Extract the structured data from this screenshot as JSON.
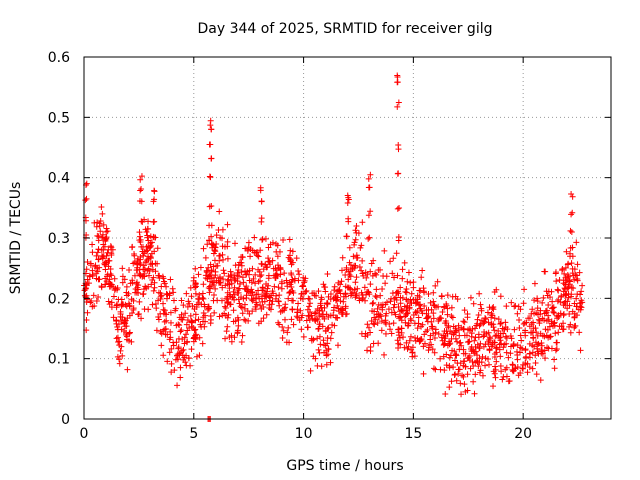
{
  "chart_data": {
    "type": "scatter",
    "title": "Day 344 of 2025, SRMTID for receiver gilg",
    "xlabel": "GPS time / hours",
    "ylabel": "SRMTID / TECUs",
    "xlim": [
      0,
      24
    ],
    "ylim": [
      0,
      0.6
    ],
    "x_ticks": [
      0,
      5,
      10,
      15,
      20
    ],
    "x_tick_labels": [
      "0",
      "5",
      "10",
      "15",
      "20"
    ],
    "y_ticks": [
      0,
      0.1,
      0.2,
      0.3,
      0.4,
      0.5,
      0.6
    ],
    "y_tick_labels": [
      "0",
      "0.1",
      "0.2",
      "0.3",
      "0.4",
      "0.5",
      "0.6"
    ],
    "grid": true,
    "marker": "plus",
    "color": "#ff0000",
    "coverage_x_range": [
      0,
      22.7
    ],
    "trend": [
      [
        0.0,
        0.22
      ],
      [
        0.5,
        0.24
      ],
      [
        0.9,
        0.29
      ],
      [
        1.2,
        0.25
      ],
      [
        1.5,
        0.16
      ],
      [
        2.0,
        0.18
      ],
      [
        2.5,
        0.24
      ],
      [
        3.0,
        0.26
      ],
      [
        3.5,
        0.18
      ],
      [
        4.0,
        0.15
      ],
      [
        4.5,
        0.13
      ],
      [
        5.0,
        0.18
      ],
      [
        5.5,
        0.2
      ],
      [
        6.0,
        0.27
      ],
      [
        6.5,
        0.22
      ],
      [
        7.0,
        0.2
      ],
      [
        7.5,
        0.23
      ],
      [
        8.0,
        0.21
      ],
      [
        8.5,
        0.24
      ],
      [
        9.0,
        0.22
      ],
      [
        9.5,
        0.21
      ],
      [
        10.0,
        0.2
      ],
      [
        10.5,
        0.15
      ],
      [
        11.0,
        0.16
      ],
      [
        11.5,
        0.19
      ],
      [
        12.0,
        0.23
      ],
      [
        12.5,
        0.25
      ],
      [
        13.0,
        0.18
      ],
      [
        13.5,
        0.2
      ],
      [
        14.0,
        0.19
      ],
      [
        14.5,
        0.18
      ],
      [
        15.0,
        0.15
      ],
      [
        15.5,
        0.18
      ],
      [
        16.0,
        0.16
      ],
      [
        16.5,
        0.14
      ],
      [
        17.0,
        0.12
      ],
      [
        17.5,
        0.11
      ],
      [
        18.0,
        0.13
      ],
      [
        18.5,
        0.14
      ],
      [
        19.0,
        0.11
      ],
      [
        19.5,
        0.13
      ],
      [
        20.0,
        0.12
      ],
      [
        20.5,
        0.14
      ],
      [
        21.0,
        0.15
      ],
      [
        21.5,
        0.17
      ],
      [
        22.0,
        0.21
      ],
      [
        22.5,
        0.2
      ],
      [
        22.7,
        0.21
      ]
    ],
    "spikes": [
      {
        "x": 0.1,
        "values": [
          0.3,
          0.33,
          0.36,
          0.39
        ]
      },
      {
        "x": 2.6,
        "values": [
          0.3,
          0.33,
          0.36,
          0.38,
          0.4
        ]
      },
      {
        "x": 3.2,
        "values": [
          0.3,
          0.33,
          0.36,
          0.38
        ]
      },
      {
        "x": 5.75,
        "values": [
          0.3,
          0.35,
          0.4,
          0.43,
          0.46,
          0.48,
          0.49
        ]
      },
      {
        "x": 8.1,
        "values": [
          0.3,
          0.33,
          0.36,
          0.38
        ]
      },
      {
        "x": 12.0,
        "values": [
          0.3,
          0.33,
          0.36,
          0.37
        ]
      },
      {
        "x": 13.0,
        "values": [
          0.3,
          0.34,
          0.38,
          0.4
        ]
      },
      {
        "x": 14.3,
        "values": [
          0.3,
          0.35,
          0.41,
          0.45,
          0.52,
          0.555,
          0.57
        ]
      },
      {
        "x": 22.2,
        "values": [
          0.28,
          0.31,
          0.34,
          0.37
        ]
      }
    ],
    "zero_points": [
      {
        "x": 5.65,
        "y": 0.0
      },
      {
        "x": 5.7,
        "y": 0.0
      },
      {
        "x": 5.75,
        "y": 0.0
      }
    ]
  }
}
